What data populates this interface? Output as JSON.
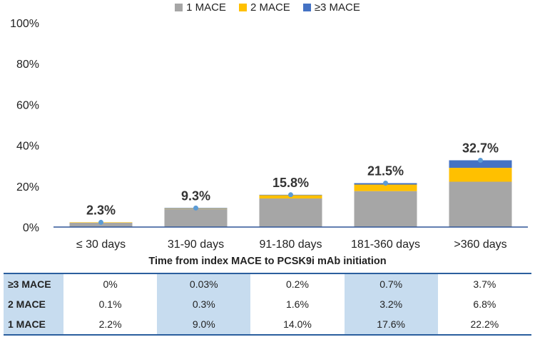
{
  "chart_data": {
    "type": "bar",
    "stacked": true,
    "categories": [
      "≤ 30 days",
      "31-90 days",
      "91-180 days",
      "181-360 days",
      ">360 days"
    ],
    "series": [
      {
        "name": "1 MACE",
        "color": "#a6a6a6",
        "values": [
          2.2,
          9.0,
          14.0,
          17.6,
          22.2
        ]
      },
      {
        "name": "2 MACE",
        "color": "#ffc000",
        "values": [
          0.1,
          0.3,
          1.6,
          3.2,
          6.8
        ]
      },
      {
        "name": "≥3 MACE",
        "color": "#4472c4",
        "values": [
          0,
          0.03,
          0.2,
          0.7,
          3.7
        ]
      }
    ],
    "totals": [
      2.3,
      9.3,
      15.8,
      21.5,
      32.7
    ],
    "total_labels": [
      "2.3%",
      "9.3%",
      "15.8%",
      "21.5%",
      "32.7%"
    ],
    "marker_color": "#5b9bd5",
    "xlabel": "Time from index MACE to PCSK9i mAb initiation",
    "ylabel": "",
    "ylim": [
      0,
      100
    ],
    "yticks": [
      0,
      20,
      40,
      60,
      80,
      100
    ],
    "ytick_labels": [
      "0%",
      "20%",
      "40%",
      "60%",
      "80%",
      "100%"
    ],
    "legend_position": "top-center",
    "grid": false
  },
  "table": {
    "rows": [
      {
        "label": "≥3 MACE",
        "cells": [
          "0%",
          "0.03%",
          "0.2%",
          "0.7%",
          "3.7%"
        ]
      },
      {
        "label": "2 MACE",
        "cells": [
          "0.1%",
          "0.3%",
          "1.6%",
          "3.2%",
          "6.8%"
        ]
      },
      {
        "label": "1 MACE",
        "cells": [
          "2.2%",
          "9.0%",
          "14.0%",
          "17.6%",
          "22.2%"
        ]
      }
    ]
  }
}
